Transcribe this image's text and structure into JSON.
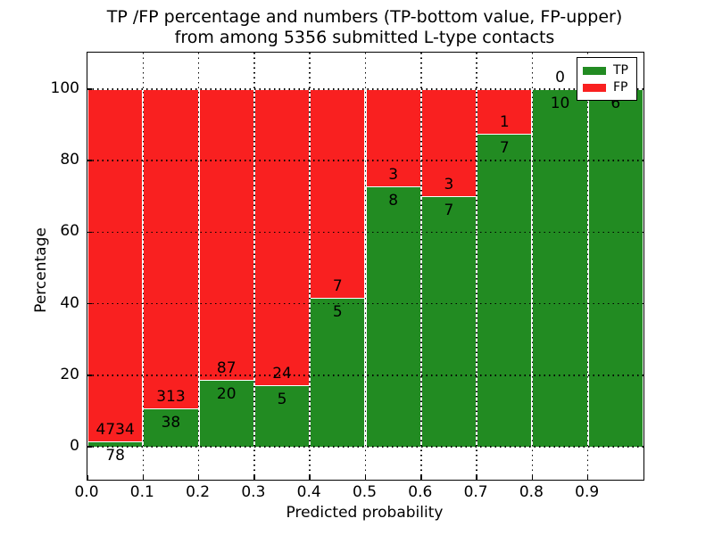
{
  "title": {
    "line1": "TP /FP percentage and numbers (TP-bottom value, FP-upper)",
    "line2": "from among 5356 submitted L-type contacts"
  },
  "axes": {
    "xlabel": "Predicted probability",
    "ylabel": "Percentage"
  },
  "legend": {
    "position": "upper right",
    "items": [
      {
        "label": "TP",
        "color": "#228b22"
      },
      {
        "label": "FP",
        "color": "#f92020"
      }
    ]
  },
  "colors": {
    "tp": "#228b22",
    "fp": "#f92020",
    "grid": "#000000",
    "bar_edge": "#ffffff",
    "background": "#ffffff"
  },
  "chart_data": {
    "type": "bar",
    "stacked": true,
    "normalized": "each bin stacked to 100%",
    "title": "TP /FP percentage and numbers (TP-bottom value, FP-upper)\nfrom among 5356 submitted L-type contacts",
    "xlabel": "Predicted probability",
    "ylabel": "Percentage",
    "total_contacts": 5356,
    "bin_width": 0.1,
    "bin_starts": [
      0.0,
      0.1,
      0.2,
      0.3,
      0.4,
      0.5,
      0.6,
      0.7,
      0.8,
      0.9
    ],
    "categories": [
      "0.0-0.1",
      "0.1-0.2",
      "0.2-0.3",
      "0.3-0.4",
      "0.4-0.5",
      "0.5-0.6",
      "0.6-0.7",
      "0.7-0.8",
      "0.8-0.9",
      "0.9-1.0"
    ],
    "series": [
      {
        "name": "TP",
        "color": "#228b22",
        "counts": [
          78,
          38,
          20,
          5,
          5,
          8,
          7,
          7,
          10,
          6
        ]
      },
      {
        "name": "FP",
        "color": "#f92020",
        "counts": [
          4734,
          313,
          87,
          24,
          7,
          3,
          3,
          1,
          0,
          0
        ]
      }
    ],
    "annotations": "FP count printed above the TP/FP boundary, TP count printed below it",
    "xticks": [
      "0.0",
      "0.1",
      "0.2",
      "0.3",
      "0.4",
      "0.5",
      "0.6",
      "0.7",
      "0.8",
      "0.9"
    ],
    "yticks": [
      0,
      20,
      40,
      60,
      80,
      100
    ],
    "xlim": [
      0.0,
      1.0
    ],
    "ylim": [
      -9.2,
      110.2
    ],
    "grid": "dotted black, both axes, drawn over bars",
    "legend_position": "upper right"
  }
}
